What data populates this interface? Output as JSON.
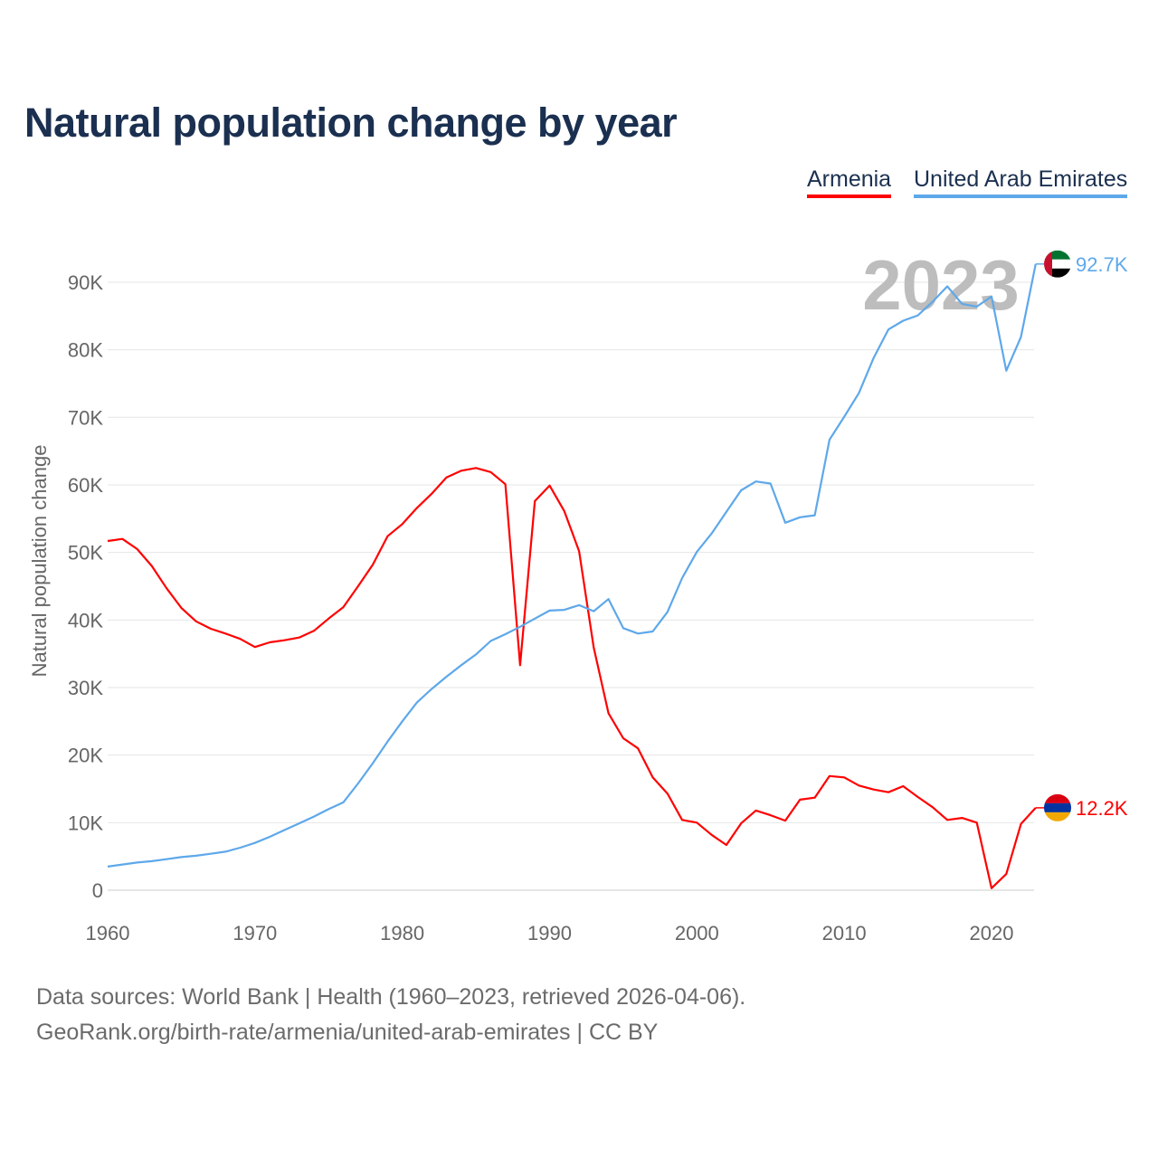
{
  "chart_data": {
    "type": "line",
    "title": "Natural population change by year",
    "xlabel": "",
    "ylabel": "Natural population change",
    "xlim": [
      1960,
      2023
    ],
    "ylim": [
      0,
      90000
    ],
    "x_ticks": [
      "1960",
      "1970",
      "1980",
      "1990",
      "2000",
      "2010",
      "2020"
    ],
    "y_ticks": [
      "0",
      "10K",
      "20K",
      "30K",
      "40K",
      "50K",
      "60K",
      "70K",
      "80K",
      "90K"
    ],
    "grid": true,
    "legend_placement": "top-right",
    "watermark_year": "2023",
    "x": [
      1960,
      1961,
      1962,
      1963,
      1964,
      1965,
      1966,
      1967,
      1968,
      1969,
      1970,
      1971,
      1972,
      1973,
      1974,
      1975,
      1976,
      1977,
      1978,
      1979,
      1980,
      1981,
      1982,
      1983,
      1984,
      1985,
      1986,
      1987,
      1988,
      1989,
      1990,
      1991,
      1992,
      1993,
      1994,
      1995,
      1996,
      1997,
      1998,
      1999,
      2000,
      2001,
      2002,
      2003,
      2004,
      2005,
      2006,
      2007,
      2008,
      2009,
      2010,
      2011,
      2012,
      2013,
      2014,
      2015,
      2016,
      2017,
      2018,
      2019,
      2020,
      2021,
      2022,
      2023
    ],
    "series": [
      {
        "name": "Armenia",
        "color": "#ff0000",
        "end_label": "12.2K",
        "flag": "armenia-flag",
        "values": [
          51700,
          52000,
          50500,
          48000,
          44700,
          41800,
          39800,
          38700,
          38000,
          37200,
          36000,
          36700,
          37000,
          37400,
          38400,
          40200,
          41900,
          45000,
          48200,
          52400,
          54200,
          56600,
          58700,
          61100,
          62100,
          62500,
          61900,
          60100,
          33300,
          57600,
          59900,
          56100,
          50200,
          35900,
          26200,
          22500,
          21000,
          16700,
          14300,
          10400,
          10000,
          8200,
          6700,
          9900,
          11800,
          11100,
          10300,
          13400,
          13700,
          16900,
          16700,
          15500,
          14900,
          14500,
          15400,
          13800,
          12300,
          10400,
          10700,
          10000,
          300,
          2400,
          9800,
          12200
        ]
      },
      {
        "name": "United Arab Emirates",
        "color": "#5ea8ea",
        "end_label": "92.7K",
        "flag": "uae-flag",
        "values": [
          3500,
          3800,
          4100,
          4300,
          4600,
          4900,
          5100,
          5400,
          5700,
          6300,
          7000,
          7900,
          8900,
          9900,
          10900,
          12000,
          13000,
          15800,
          18800,
          22000,
          25000,
          27800,
          29800,
          31600,
          33300,
          34900,
          36900,
          37900,
          39000,
          40200,
          41400,
          41500,
          42200,
          41300,
          43100,
          38800,
          38000,
          38300,
          41200,
          46200,
          50100,
          52800,
          56000,
          59200,
          60500,
          60200,
          54400,
          55200,
          55500,
          66700,
          70100,
          73600,
          78800,
          83000,
          84300,
          85100,
          87100,
          89400,
          86800,
          86400,
          87900,
          76900,
          81900,
          92700
        ]
      }
    ]
  },
  "footer": {
    "line1": "Data sources: World Bank | Health (1960–2023, retrieved 2026-04-06).",
    "line2": "GeoRank.org/birth-rate/armenia/united-arab-emirates | CC BY"
  }
}
